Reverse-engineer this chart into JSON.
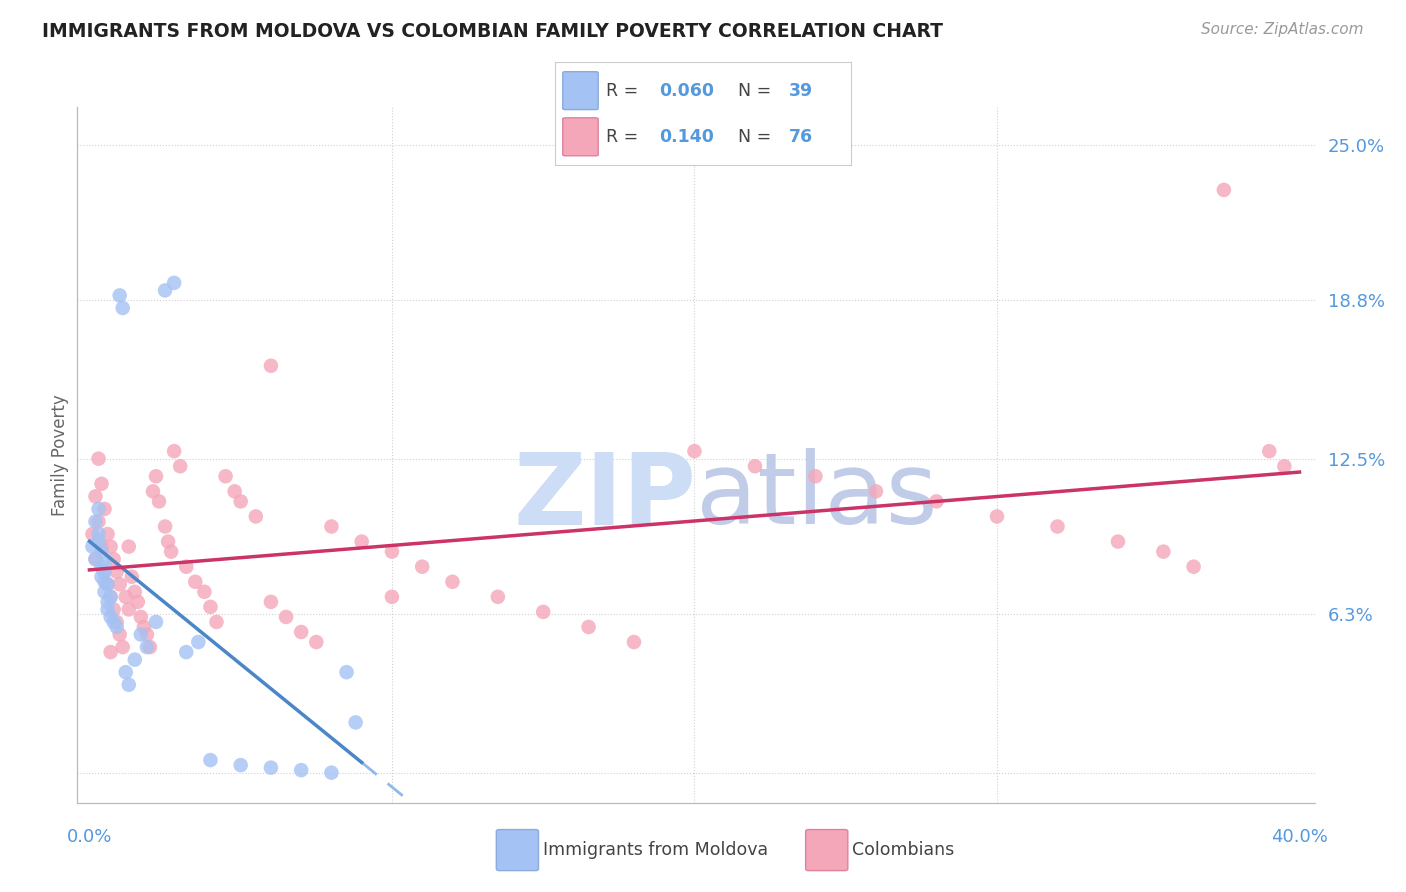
{
  "title": "IMMIGRANTS FROM MOLDOVA VS COLOMBIAN FAMILY POVERTY CORRELATION CHART",
  "source": "Source: ZipAtlas.com",
  "ylabel": "Family Poverty",
  "yticks": [
    0.0,
    0.063,
    0.125,
    0.188,
    0.25
  ],
  "ytick_labels": [
    "",
    "6.3%",
    "12.5%",
    "18.8%",
    "25.0%"
  ],
  "xlim": [
    0.0,
    0.4
  ],
  "ylim": [
    0.0,
    0.265
  ],
  "blue_color": "#a4c2f4",
  "pink_color": "#f4a7b9",
  "trend_blue_solid": "#4a86c8",
  "trend_pink_solid": "#cc3366",
  "trend_blue_dashed": "#90b8e8",
  "watermark_zip": "#d4e3f5",
  "watermark_atlas": "#c8d8ee",
  "grid_color": "#d0d0d8",
  "spine_color": "#bbbbbb",
  "tick_label_color": "#5599dd",
  "blue_x": [
    0.001,
    0.002,
    0.002,
    0.003,
    0.003,
    0.003,
    0.004,
    0.004,
    0.004,
    0.005,
    0.005,
    0.005,
    0.005,
    0.006,
    0.006,
    0.006,
    0.007,
    0.007,
    0.008,
    0.009,
    0.01,
    0.011,
    0.012,
    0.013,
    0.015,
    0.017,
    0.019,
    0.022,
    0.025,
    0.028,
    0.032,
    0.036,
    0.04,
    0.05,
    0.06,
    0.07,
    0.08,
    0.085,
    0.088
  ],
  "blue_y": [
    0.09,
    0.085,
    0.1,
    0.105,
    0.095,
    0.092,
    0.088,
    0.082,
    0.078,
    0.083,
    0.08,
    0.076,
    0.072,
    0.075,
    0.068,
    0.065,
    0.07,
    0.062,
    0.06,
    0.058,
    0.19,
    0.185,
    0.04,
    0.035,
    0.045,
    0.055,
    0.05,
    0.06,
    0.192,
    0.195,
    0.048,
    0.052,
    0.005,
    0.003,
    0.002,
    0.001,
    0.0,
    0.04,
    0.02
  ],
  "pink_x": [
    0.001,
    0.002,
    0.002,
    0.003,
    0.003,
    0.004,
    0.004,
    0.005,
    0.005,
    0.006,
    0.006,
    0.007,
    0.007,
    0.008,
    0.008,
    0.009,
    0.009,
    0.01,
    0.01,
    0.011,
    0.012,
    0.013,
    0.013,
    0.014,
    0.015,
    0.016,
    0.017,
    0.018,
    0.019,
    0.02,
    0.021,
    0.022,
    0.023,
    0.025,
    0.026,
    0.027,
    0.028,
    0.03,
    0.032,
    0.035,
    0.038,
    0.04,
    0.042,
    0.045,
    0.048,
    0.05,
    0.055,
    0.06,
    0.065,
    0.07,
    0.075,
    0.08,
    0.09,
    0.1,
    0.11,
    0.12,
    0.135,
    0.15,
    0.165,
    0.18,
    0.2,
    0.22,
    0.24,
    0.26,
    0.28,
    0.3,
    0.32,
    0.34,
    0.355,
    0.365,
    0.375,
    0.39,
    0.395,
    0.007,
    0.06,
    0.1
  ],
  "pink_y": [
    0.095,
    0.11,
    0.085,
    0.125,
    0.1,
    0.09,
    0.115,
    0.08,
    0.105,
    0.075,
    0.095,
    0.07,
    0.09,
    0.065,
    0.085,
    0.06,
    0.08,
    0.055,
    0.075,
    0.05,
    0.07,
    0.065,
    0.09,
    0.078,
    0.072,
    0.068,
    0.062,
    0.058,
    0.055,
    0.05,
    0.112,
    0.118,
    0.108,
    0.098,
    0.092,
    0.088,
    0.128,
    0.122,
    0.082,
    0.076,
    0.072,
    0.066,
    0.06,
    0.118,
    0.112,
    0.108,
    0.102,
    0.068,
    0.062,
    0.056,
    0.052,
    0.098,
    0.092,
    0.088,
    0.082,
    0.076,
    0.07,
    0.064,
    0.058,
    0.052,
    0.128,
    0.122,
    0.118,
    0.112,
    0.108,
    0.102,
    0.098,
    0.092,
    0.088,
    0.082,
    0.232,
    0.128,
    0.122,
    0.048,
    0.162,
    0.07
  ]
}
